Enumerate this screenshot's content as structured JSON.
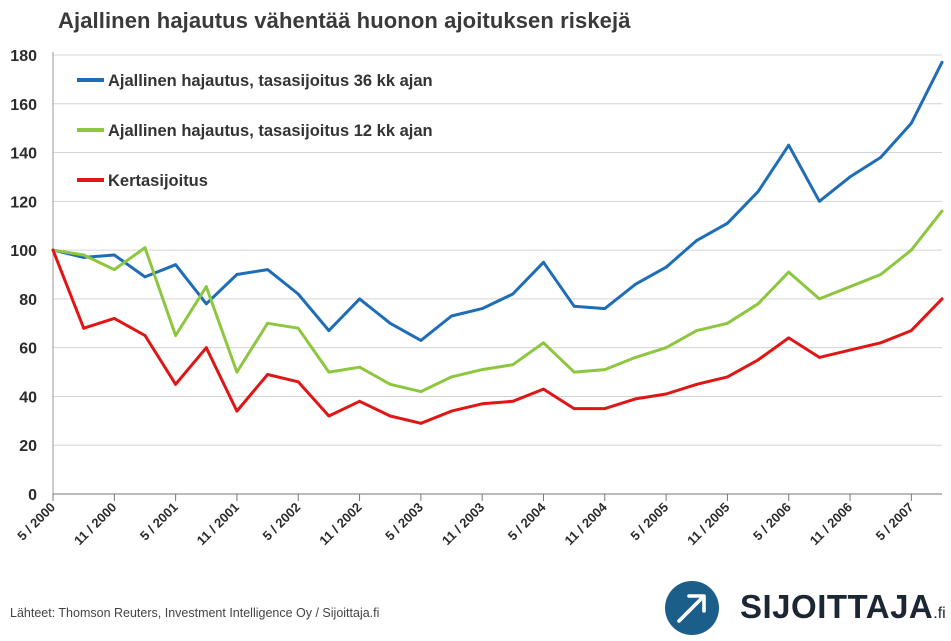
{
  "title": "Ajallinen hajautus vähentää huonon ajoituksen riskejä",
  "source": "Lähteet: Thomson Reuters, Investment Intelligence Oy / Sijoittaja.fi",
  "logo": {
    "text": "SIJOITTAJA",
    "suffix": ".fi",
    "icon": "arrow-up-right-icon",
    "color": "#1c5e8a"
  },
  "chart_data": {
    "type": "line",
    "title": "Ajallinen hajautus vähentää huonon ajoituksen riskejä",
    "xlabel": "",
    "ylabel": "",
    "ylim": [
      0,
      180
    ],
    "yticks": [
      0,
      20,
      40,
      60,
      80,
      100,
      120,
      140,
      160,
      180
    ],
    "grid": "horizontal",
    "legend_position": "top-left",
    "x": [
      "5 / 2000",
      "8 / 2000",
      "11 / 2000",
      "2 / 2001",
      "5 / 2001",
      "8 / 2001",
      "11 / 2001",
      "2 / 2002",
      "5 / 2002",
      "8 / 2002",
      "11 / 2002",
      "2 / 2003",
      "5 / 2003",
      "8 / 2003",
      "11 / 2003",
      "2 / 2004",
      "5 / 2004",
      "8 / 2004",
      "11 / 2004",
      "2 / 2005",
      "5 / 2005",
      "8 / 2005",
      "11 / 2005",
      "2 / 2006",
      "5 / 2006",
      "8 / 2006",
      "11 / 2006",
      "2 / 2007",
      "5 / 2007",
      "7 / 2007"
    ],
    "xtick_labels": [
      "5 / 2000",
      "11 / 2000",
      "5 / 2001",
      "11 / 2001",
      "5 / 2002",
      "11 / 2002",
      "5 / 2003",
      "11 / 2003",
      "5 / 2004",
      "11 / 2004",
      "5 / 2005",
      "11 / 2005",
      "5 / 2006",
      "11 / 2006",
      "5 / 2007"
    ],
    "series": [
      {
        "name": "Ajallinen hajautus, tasasijoitus 36 kk ajan",
        "color": "#1f6db6",
        "values": [
          100,
          97,
          98,
          89,
          94,
          78,
          90,
          92,
          82,
          67,
          80,
          70,
          63,
          73,
          76,
          82,
          95,
          77,
          76,
          86,
          93,
          104,
          111,
          124,
          143,
          120,
          130,
          138,
          152,
          177
        ]
      },
      {
        "name": "Ajallinen hajautus, tasasijoitus 12 kk ajan",
        "color": "#8dc63f",
        "values": [
          100,
          98,
          92,
          101,
          65,
          85,
          50,
          70,
          68,
          50,
          52,
          45,
          42,
          48,
          51,
          53,
          62,
          50,
          51,
          56,
          60,
          67,
          70,
          78,
          91,
          80,
          85,
          90,
          100,
          116
        ]
      },
      {
        "name": "Kertasijoitus",
        "color": "#e01616",
        "values": [
          100,
          68,
          72,
          65,
          45,
          60,
          34,
          49,
          46,
          32,
          38,
          32,
          29,
          34,
          37,
          38,
          43,
          35,
          35,
          39,
          41,
          45,
          48,
          55,
          64,
          56,
          59,
          62,
          67,
          80
        ]
      }
    ]
  }
}
